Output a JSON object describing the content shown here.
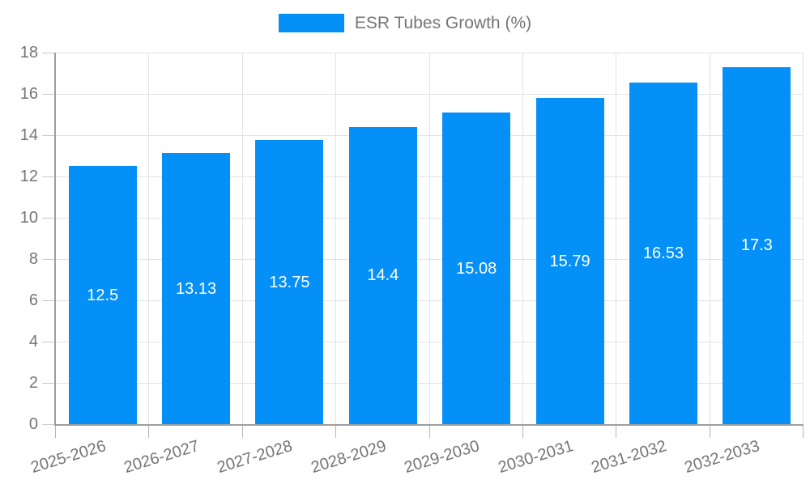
{
  "colors": {
    "bar": "#0590F8",
    "grid": "#E2E2E2",
    "axis": "#9E9E9E",
    "tick_text": "#757575",
    "value_text": "#FFFFFF"
  },
  "legend": {
    "label": "ESR Tubes Growth (%)"
  },
  "chart_data": {
    "type": "bar",
    "title": "ESR Tubes Growth (%)",
    "categories": [
      "2025-2026",
      "2026-2027",
      "2027-2028",
      "2028-2029",
      "2029-2030",
      "2030-2031",
      "2031-2032",
      "2032-2033"
    ],
    "values": [
      12.5,
      13.13,
      13.75,
      14.4,
      15.08,
      15.79,
      16.53,
      17.3
    ],
    "value_labels": [
      "12.5",
      "13.13",
      "13.75",
      "14.4",
      "15.08",
      "15.79",
      "16.53",
      "17.3"
    ],
    "xlabel": "",
    "ylabel": "",
    "ylim": [
      0,
      18
    ],
    "ytick_step": 2,
    "yticks": [
      0,
      2,
      4,
      6,
      8,
      10,
      12,
      14,
      16,
      18
    ],
    "grid": true,
    "legend_position": "top-center",
    "value_label_position": "inside-center",
    "x_label_rotation_deg": -17
  }
}
